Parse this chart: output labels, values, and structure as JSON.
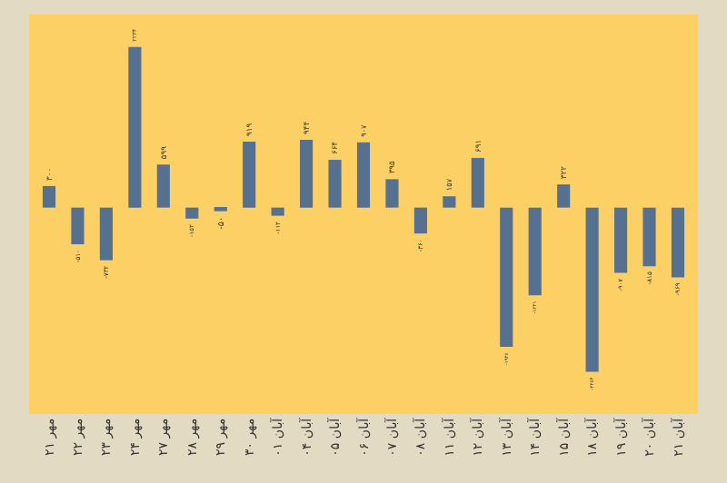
{
  "chart_data": {
    "type": "bar",
    "categories": [
      "مهر ۲۱",
      "مهر ۲۲",
      "مهر ۲۳",
      "مهر ۲۴",
      "مهر ۲۷",
      "مهر ۲۸",
      "مهر ۲۹",
      "مهر ۳۰",
      "آبان ۰۱",
      "آبان ۰۴",
      "آبان ۰۵",
      "آبان ۰۶",
      "آبان ۰۷",
      "آبان ۰۸",
      "آبان ۱۱",
      "آبان ۱۲",
      "آبان ۱۳",
      "آبان ۱۴",
      "آبان ۱۵",
      "آبان ۱۸",
      "آبان ۱۹",
      "آبان ۲۰",
      "آبان ۲۱"
    ],
    "values": [
      300,
      -510,
      -732,
      2234,
      599,
      -153,
      -50,
      919,
      -113,
      944,
      664,
      907,
      395,
      -360,
      157,
      691,
      -1938,
      -1221,
      322,
      -2284,
      -907,
      -815,
      -969
    ],
    "value_labels": [
      "۳۰۰",
      "-۵۱۰",
      "-۷۳۲",
      "۲۲۳۴",
      "۵۹۹",
      "-۱۵۳",
      "-۵۰",
      "۹۱۹",
      "-۱۱۳",
      "۹۴۴",
      "۶۶۴",
      "۹۰۷",
      "۳۹۵",
      "-۳۶۰",
      "۱۵۷",
      "۶۹۱",
      "-۱۹۳۸",
      "-۱۲۲۱",
      "۳۲۲",
      "-۲۲۸۴",
      "-۹۰۷",
      "-۸۱۵",
      "-۹۶۹"
    ],
    "color": "#56708f",
    "grid": false,
    "legend": false
  }
}
